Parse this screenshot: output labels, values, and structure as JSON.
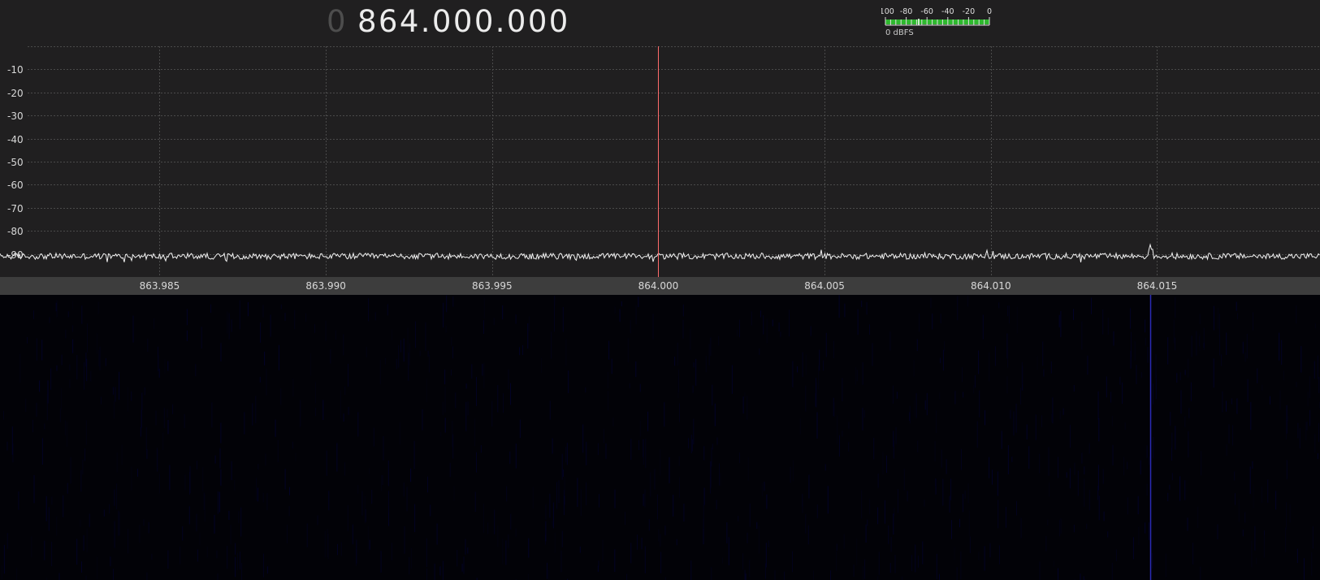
{
  "frequency": {
    "prefix": "0",
    "value": "864.000.000"
  },
  "meter": {
    "tick_labels": [
      "-100",
      "-80",
      "-60",
      "-40",
      "-20",
      "0"
    ],
    "range": [
      -100,
      0
    ],
    "level_db": -68,
    "label": "0 dBFS",
    "bar_color": "#2eb82e"
  },
  "spectrum": {
    "db_labels": [
      "-10",
      "-20",
      "-30",
      "-40",
      "-50",
      "-60",
      "-70",
      "-80",
      "-90"
    ],
    "db_range": [
      -100,
      0
    ],
    "freq_labels": [
      "863.985",
      "863.990",
      "863.995",
      "864.000",
      "864.005",
      "864.010",
      "864.015"
    ],
    "freq_start": 863.9802,
    "freq_end": 864.0199,
    "center_freq": 864.0,
    "noise_floor_db": -91,
    "peak": {
      "freq": 864.0148,
      "db": -86
    },
    "trace_color": "#f2f2f2",
    "center_line_color": "#ff6b6b",
    "grid_color": "#4a4a4a",
    "axis_band_color": "#3d3d3d"
  },
  "waterfall": {
    "background_color": "#020207",
    "signal_color": "#2a2ab5",
    "signal_freq": 864.0148
  }
}
